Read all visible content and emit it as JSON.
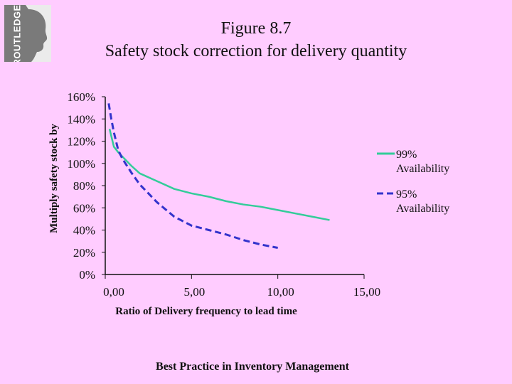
{
  "logo": {
    "text": "ROUTLEDGE"
  },
  "title_line1": "Figure 8.7",
  "title_line2": "Safety stock correction for delivery quantity",
  "footer": "Best Practice in Inventory Management",
  "colors": {
    "background": "#ffccff",
    "series1": "#33cc99",
    "series2": "#3333cc"
  },
  "chart_data": {
    "type": "line",
    "title": "Safety stock correction for delivery quantity",
    "xlabel": "Ratio of Delivery frequency to lead time",
    "ylabel": "Multiply safety stock by",
    "xlim": [
      0,
      15
    ],
    "ylim": [
      0,
      1.6
    ],
    "x_ticks": [
      0,
      5,
      10,
      15
    ],
    "x_tick_labels": [
      "0,00",
      "5,00",
      "10,00",
      "15,00"
    ],
    "y_ticks": [
      0,
      0.2,
      0.4,
      0.6,
      0.8,
      1.0,
      1.2,
      1.4,
      1.6
    ],
    "y_tick_labels": [
      "0%",
      "20%",
      "40%",
      "60%",
      "80%",
      "100%",
      "120%",
      "140%",
      "160%"
    ],
    "grid": false,
    "legend_position": "right",
    "series": [
      {
        "name": "99% Availability",
        "legend_lines": [
          "99%",
          "Availability"
        ],
        "style": "solid",
        "x": [
          0.25,
          0.5,
          0.75,
          1,
          1.5,
          2,
          3,
          4,
          5,
          6,
          7,
          8,
          9,
          10,
          11,
          12,
          13
        ],
        "y": [
          1.31,
          1.15,
          1.1,
          1.06,
          0.98,
          0.91,
          0.84,
          0.77,
          0.73,
          0.7,
          0.66,
          0.63,
          0.61,
          0.58,
          0.55,
          0.52,
          0.49
        ]
      },
      {
        "name": "95% Availability",
        "legend_lines": [
          "95%",
          "Availability"
        ],
        "style": "dashed",
        "x": [
          0.2,
          0.35,
          0.5,
          0.75,
          1,
          1.5,
          2,
          3,
          4,
          5,
          6,
          7,
          8,
          9,
          10
        ],
        "y": [
          1.54,
          1.4,
          1.28,
          1.12,
          1.04,
          0.92,
          0.81,
          0.65,
          0.52,
          0.44,
          0.4,
          0.36,
          0.31,
          0.27,
          0.24
        ]
      }
    ]
  }
}
